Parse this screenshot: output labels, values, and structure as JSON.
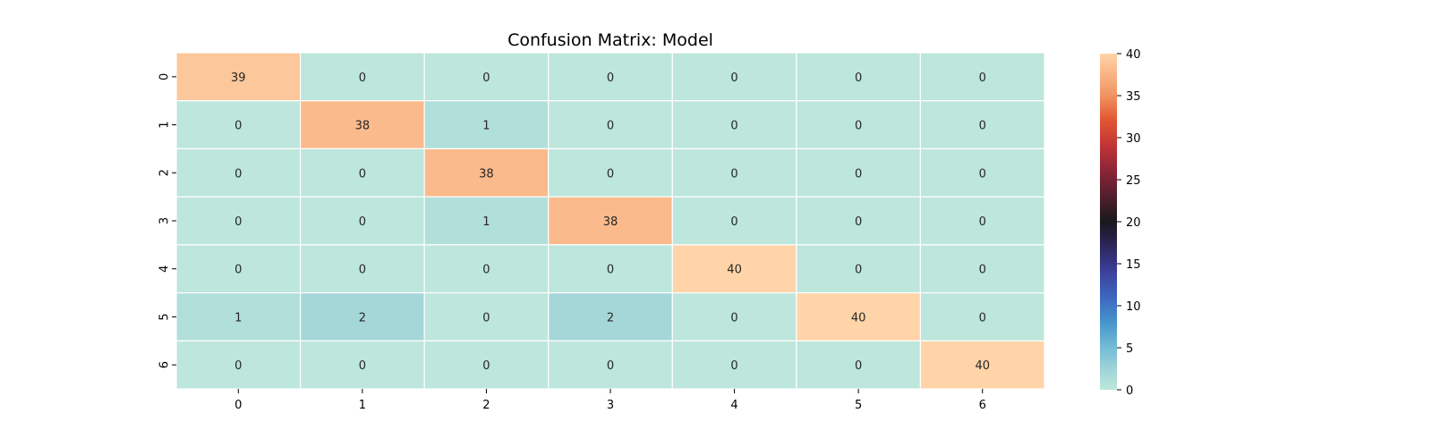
{
  "chart_data": {
    "type": "heatmap",
    "title": "Confusion Matrix: Model",
    "xlabel": "",
    "ylabel": "",
    "x_categories": [
      "0",
      "1",
      "2",
      "3",
      "4",
      "5",
      "6"
    ],
    "y_categories": [
      "0",
      "1",
      "2",
      "3",
      "4",
      "5",
      "6"
    ],
    "values": [
      [
        39,
        0,
        0,
        0,
        0,
        0,
        0
      ],
      [
        0,
        38,
        1,
        0,
        0,
        0,
        0
      ],
      [
        0,
        0,
        38,
        0,
        0,
        0,
        0
      ],
      [
        0,
        0,
        1,
        38,
        0,
        0,
        0
      ],
      [
        0,
        0,
        0,
        0,
        40,
        0,
        0
      ],
      [
        1,
        2,
        0,
        2,
        0,
        40,
        0
      ],
      [
        0,
        0,
        0,
        0,
        0,
        0,
        40
      ]
    ],
    "colorbar": {
      "range": [
        0,
        40
      ],
      "ticks": [
        0,
        5,
        10,
        15,
        20,
        25,
        30,
        35,
        40
      ]
    },
    "colormap": "icefire",
    "annotations": true,
    "cell_border_color": "#ffffff"
  }
}
